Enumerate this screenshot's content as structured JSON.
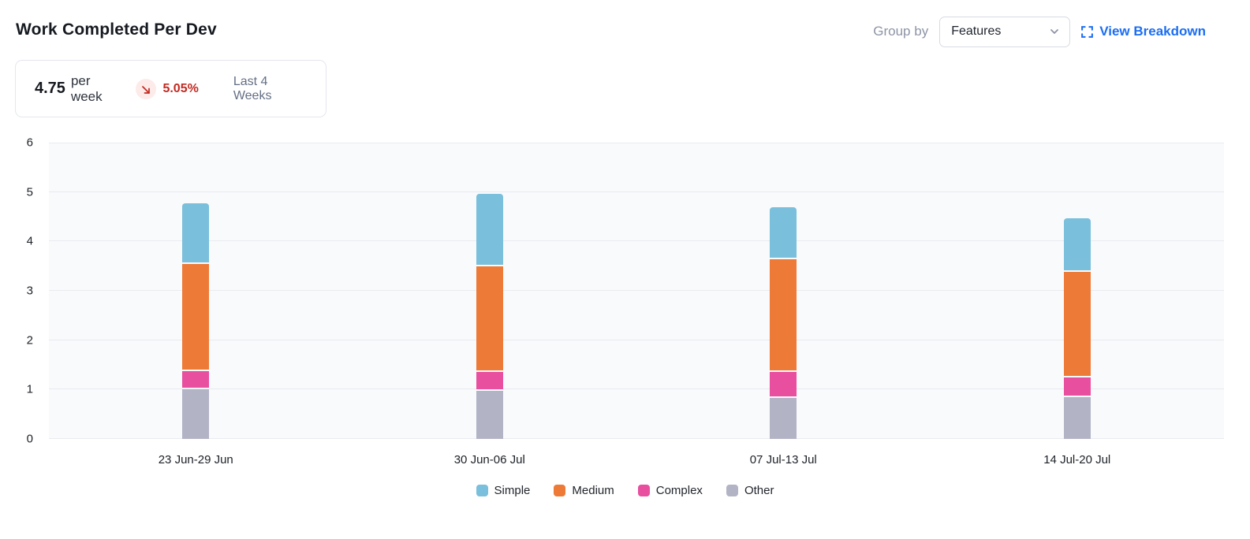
{
  "header": {
    "title": "Work Completed Per Dev",
    "group_by_label": "Group by",
    "group_by_value": "Features",
    "view_breakdown_label": "View Breakdown"
  },
  "stats": {
    "value": "4.75",
    "unit": "per week",
    "delta": "5.05%",
    "delta_direction": "down",
    "period": "Last 4 Weeks"
  },
  "colors": {
    "accent_blue": "#1b6ef3",
    "delta_red": "#c22a21",
    "delta_badge_bg": "#fcebe9",
    "plot_bg": "#f8fafc",
    "gridline": "#e9ebef"
  },
  "chart_data": {
    "type": "bar",
    "stacked": true,
    "title": "Work Completed Per Dev",
    "xlabel": "",
    "ylabel": "",
    "categories": [
      "23 Jun-29 Jun",
      "30 Jun-06 Jul",
      "07 Jul-13 Jul",
      "14 Jul-20 Jul"
    ],
    "series": [
      {
        "name": "Simple",
        "color": "#7abfdb",
        "values": [
          1.2,
          1.45,
          1.02,
          1.06
        ]
      },
      {
        "name": "Medium",
        "color": "#ee7a38",
        "values": [
          2.17,
          2.13,
          2.28,
          2.13
        ]
      },
      {
        "name": "Complex",
        "color": "#e84f9e",
        "values": [
          0.37,
          0.38,
          0.53,
          0.4
        ]
      },
      {
        "name": "Other",
        "color": "#b3b3c6",
        "values": [
          1.03,
          1.01,
          0.86,
          0.88
        ]
      }
    ],
    "stack_order": [
      "Other",
      "Complex",
      "Medium",
      "Simple"
    ],
    "totals": [
      4.77,
      4.97,
      4.69,
      4.47
    ],
    "ylim": [
      0,
      6
    ],
    "ytick_step": 1,
    "grid": true,
    "legend_position": "bottom"
  }
}
